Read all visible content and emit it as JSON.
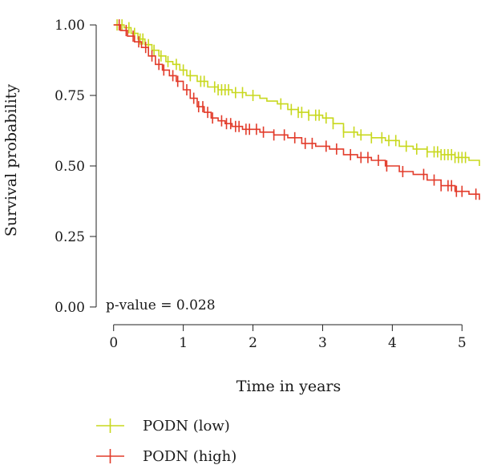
{
  "chart_data": {
    "type": "line",
    "subtype": "kaplan-meier survival curve",
    "title": "",
    "xlabel": "Time in years",
    "ylabel": "Survival probability",
    "xlim": [
      -0.25,
      5.25
    ],
    "ylim": [
      -0.04,
      1.04
    ],
    "xticks": [
      0,
      1,
      2,
      3,
      4,
      5
    ],
    "yticks": [
      0.0,
      0.25,
      0.5,
      0.75,
      1.0
    ],
    "xtick_labels": [
      "0",
      "1",
      "2",
      "3",
      "4",
      "5"
    ],
    "ytick_labels": [
      "0.00",
      "0.25",
      "0.50",
      "0.75",
      "1.00"
    ],
    "grid": false,
    "legend_position": "bottom-left",
    "annotation": "p-value = 0.028",
    "series": [
      {
        "name": "PODN (low)",
        "color": "#c8d81e",
        "x": [
          0.0,
          0.15,
          0.25,
          0.35,
          0.45,
          0.55,
          0.65,
          0.75,
          0.85,
          0.95,
          1.05,
          1.2,
          1.35,
          1.5,
          1.7,
          1.9,
          2.1,
          2.2,
          2.35,
          2.5,
          2.65,
          2.8,
          3.0,
          3.15,
          3.3,
          3.5,
          3.7,
          3.9,
          4.1,
          4.3,
          4.5,
          4.7,
          4.9,
          5.1,
          5.25
        ],
        "y": [
          1.0,
          0.99,
          0.97,
          0.95,
          0.93,
          0.91,
          0.89,
          0.87,
          0.86,
          0.84,
          0.82,
          0.8,
          0.78,
          0.77,
          0.76,
          0.75,
          0.74,
          0.73,
          0.72,
          0.7,
          0.69,
          0.68,
          0.67,
          0.65,
          0.62,
          0.61,
          0.6,
          0.59,
          0.57,
          0.56,
          0.55,
          0.54,
          0.53,
          0.52,
          0.5
        ],
        "censor_x": [
          0.05,
          0.12,
          0.22,
          0.3,
          0.38,
          0.42,
          0.5,
          0.58,
          0.68,
          0.78,
          0.9,
          1.0,
          1.1,
          1.25,
          1.3,
          1.45,
          1.5,
          1.55,
          1.6,
          1.65,
          1.75,
          1.85,
          2.0,
          2.4,
          2.55,
          2.65,
          2.7,
          2.8,
          2.9,
          2.95,
          3.05,
          3.15,
          3.3,
          3.45,
          3.55,
          3.7,
          3.85,
          3.95,
          4.05,
          4.2,
          4.35,
          4.5,
          4.6,
          4.65,
          4.7,
          4.75,
          4.8,
          4.85,
          4.9,
          4.95,
          5.0,
          5.05
        ]
      },
      {
        "name": "PODN (high)",
        "color": "#e23b2a",
        "x": [
          0.0,
          0.1,
          0.2,
          0.3,
          0.4,
          0.5,
          0.6,
          0.7,
          0.8,
          0.9,
          1.0,
          1.1,
          1.2,
          1.3,
          1.4,
          1.5,
          1.6,
          1.7,
          1.85,
          2.1,
          2.3,
          2.5,
          2.7,
          2.9,
          3.1,
          3.3,
          3.5,
          3.7,
          3.9,
          4.1,
          4.3,
          4.5,
          4.7,
          4.9,
          5.1,
          5.25
        ],
        "y": [
          1.0,
          0.98,
          0.96,
          0.94,
          0.92,
          0.89,
          0.86,
          0.84,
          0.82,
          0.8,
          0.77,
          0.74,
          0.71,
          0.69,
          0.67,
          0.66,
          0.65,
          0.64,
          0.63,
          0.62,
          0.61,
          0.6,
          0.58,
          0.57,
          0.56,
          0.54,
          0.53,
          0.52,
          0.5,
          0.48,
          0.47,
          0.45,
          0.43,
          0.41,
          0.4,
          0.38
        ],
        "censor_x": [
          0.08,
          0.18,
          0.28,
          0.36,
          0.46,
          0.55,
          0.65,
          0.72,
          0.85,
          0.92,
          1.05,
          1.15,
          1.22,
          1.28,
          1.35,
          1.42,
          1.55,
          1.62,
          1.68,
          1.75,
          1.8,
          1.9,
          1.95,
          2.05,
          2.15,
          2.3,
          2.45,
          2.6,
          2.75,
          2.85,
          3.05,
          3.2,
          3.4,
          3.55,
          3.65,
          3.8,
          3.92,
          4.15,
          4.45,
          4.6,
          4.7,
          4.8,
          4.85,
          4.92,
          5.0,
          5.2
        ]
      }
    ]
  }
}
